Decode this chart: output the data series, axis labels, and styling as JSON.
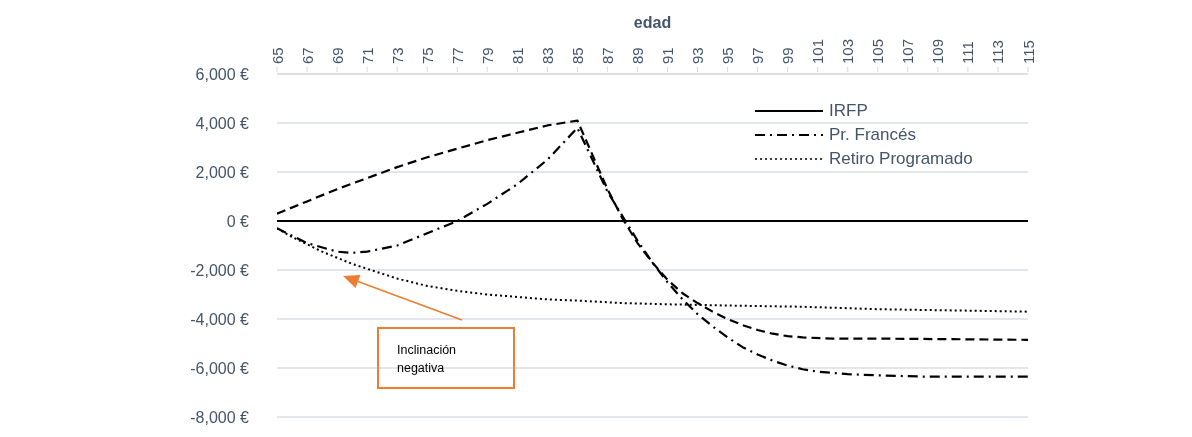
{
  "chart_data": {
    "type": "line",
    "xlabel": "edad",
    "xlim": [
      65,
      115
    ],
    "xticks": [
      65,
      67,
      69,
      71,
      73,
      75,
      77,
      79,
      81,
      83,
      85,
      87,
      89,
      91,
      93,
      95,
      97,
      99,
      101,
      103,
      105,
      107,
      109,
      111,
      113,
      115
    ],
    "ylim": [
      -8000,
      6000
    ],
    "yticks": [
      {
        "value": -8000,
        "label": "-8,000 €"
      },
      {
        "value": -6000,
        "label": "-6,000 €"
      },
      {
        "value": -4000,
        "label": "-4,000 €"
      },
      {
        "value": -2000,
        "label": "-2,000 €"
      },
      {
        "value": 0,
        "label": "0 €"
      },
      {
        "value": 2000,
        "label": "2,000 €"
      },
      {
        "value": 4000,
        "label": "4,000 €"
      },
      {
        "value": 6000,
        "label": "6,000 €"
      }
    ],
    "grid": "y",
    "legend": "top right",
    "annotations": [
      "Inclinación negativa"
    ],
    "series": [
      {
        "name": "IRFP",
        "color": "#000000",
        "line_style": "solid",
        "x": [
          65,
          115
        ],
        "values": [
          0,
          0
        ]
      },
      {
        "name": "Pr. Francés",
        "color": "#000000",
        "line_style": "dashdot",
        "x": [
          65,
          67,
          69,
          70,
          71,
          73,
          75,
          77,
          79,
          81,
          83,
          85,
          86,
          87,
          88,
          89,
          90,
          91,
          92,
          93,
          94,
          95,
          96,
          97,
          98,
          99,
          100,
          101,
          102,
          103,
          105,
          108,
          115
        ],
        "values": [
          -300,
          -900,
          -1250,
          -1300,
          -1250,
          -1000,
          -500,
          0,
          700,
          1500,
          2500,
          3800,
          2500,
          1200,
          200,
          -800,
          -1700,
          -2500,
          -3200,
          -3800,
          -4300,
          -4750,
          -5150,
          -5450,
          -5700,
          -5900,
          -6050,
          -6150,
          -6200,
          -6250,
          -6300,
          -6350,
          -6350
        ]
      },
      {
        "name": "Retiro Programado",
        "color": "#000000",
        "line_style": "dotted",
        "x": [
          65,
          66,
          67,
          68,
          69,
          70,
          71,
          72,
          73,
          74,
          75,
          77,
          79,
          81,
          83,
          85,
          88,
          91,
          95,
          100,
          105,
          110,
          115
        ],
        "values": [
          -300,
          -650,
          -950,
          -1250,
          -1500,
          -1750,
          -1950,
          -2150,
          -2350,
          -2500,
          -2650,
          -2850,
          -3000,
          -3100,
          -3200,
          -3250,
          -3350,
          -3400,
          -3450,
          -3500,
          -3600,
          -3650,
          -3700
        ]
      },
      {
        "color": "#000000",
        "line_style": "dashed",
        "x": [
          65,
          67,
          69,
          71,
          73,
          75,
          77,
          79,
          81,
          83,
          85,
          86,
          87,
          88,
          89,
          90,
          91,
          92,
          93,
          94,
          95,
          96,
          97,
          98,
          99,
          100,
          102,
          105,
          115
        ],
        "values": [
          300,
          800,
          1300,
          1750,
          2200,
          2600,
          2950,
          3300,
          3600,
          3900,
          4100,
          2700,
          1300,
          100,
          -900,
          -1700,
          -2400,
          -2950,
          -3350,
          -3700,
          -4000,
          -4250,
          -4450,
          -4600,
          -4700,
          -4750,
          -4800,
          -4800,
          -4850
        ]
      }
    ]
  }
}
